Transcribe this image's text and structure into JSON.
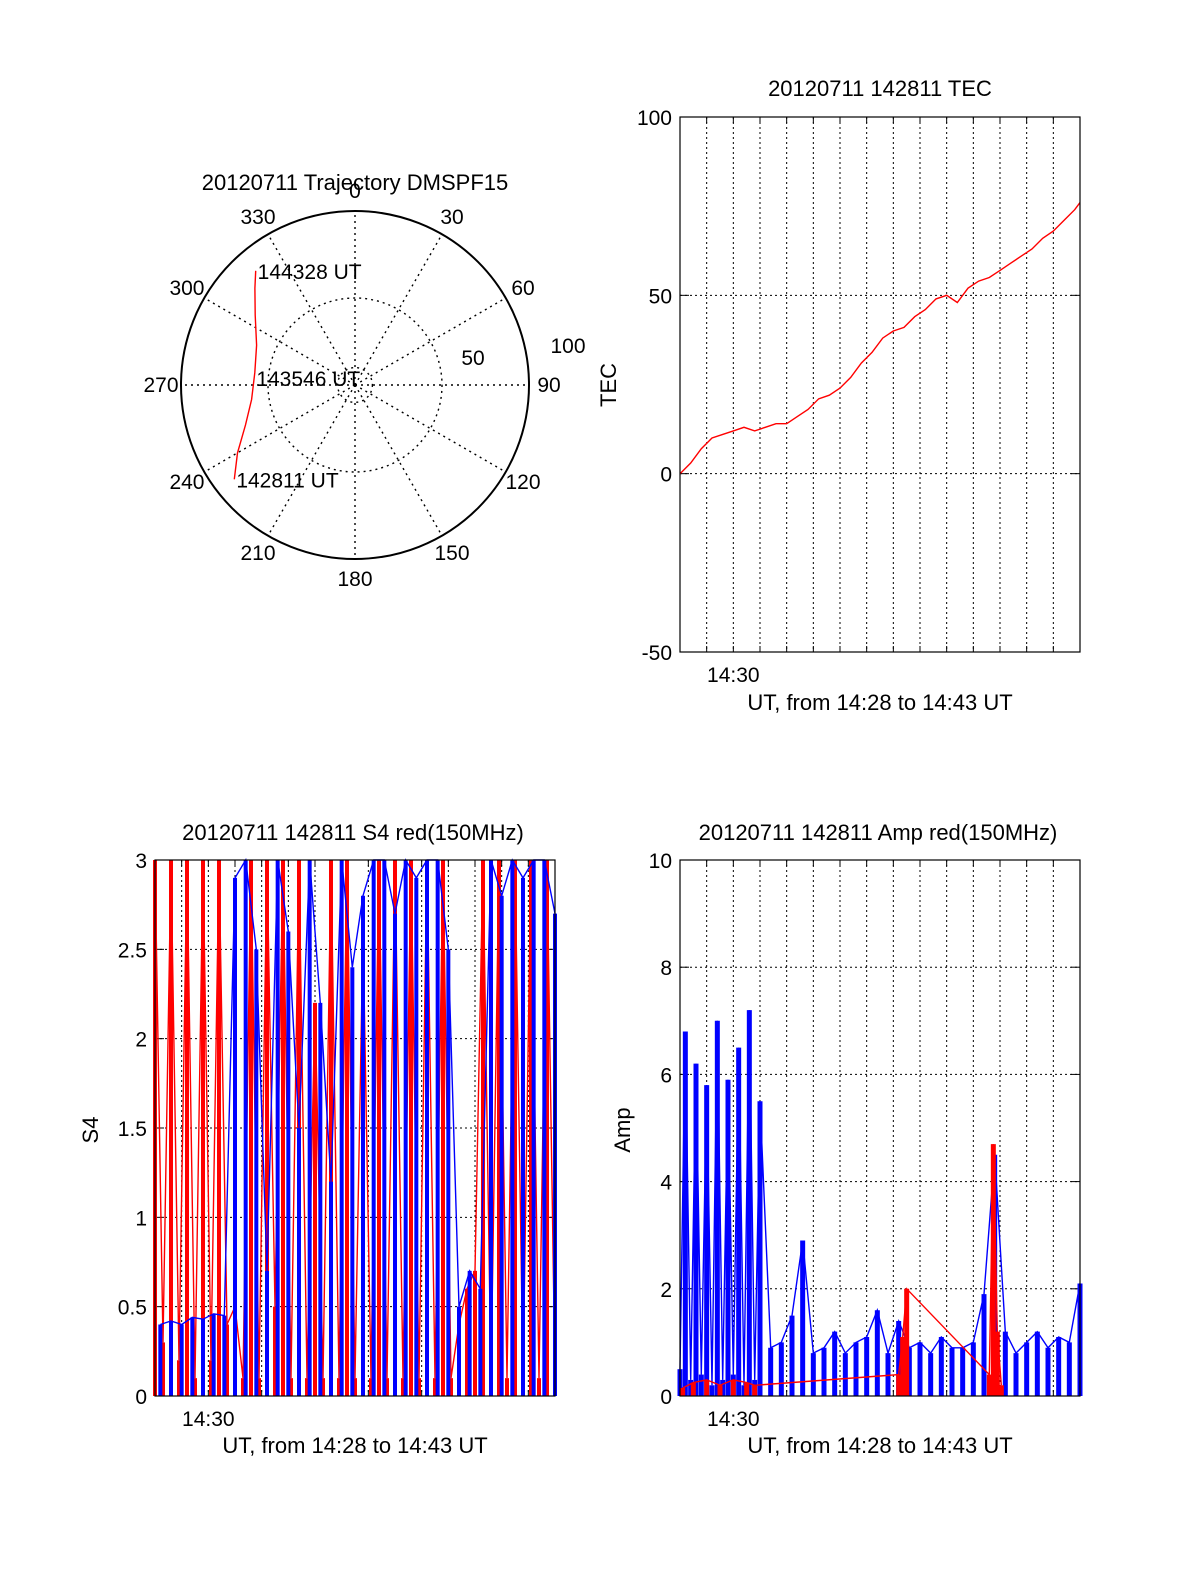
{
  "colors": {
    "red": "#ff0000",
    "blue": "#0000ff",
    "axis": "#000000",
    "background": "#ffffff"
  },
  "chart_data": [
    {
      "id": "trajectory",
      "type": "scatter",
      "projection": "polar",
      "title": "20120711 Trajectory DMSPF15",
      "azimuth_labels": [
        "0",
        "30",
        "60",
        "90",
        "120",
        "150",
        "180",
        "210",
        "240",
        "270",
        "300",
        "330"
      ],
      "radial_labels": [
        "50",
        "100"
      ],
      "radial_range": [
        0,
        100
      ],
      "grid": true,
      "series": [
        {
          "color": "#ff0000",
          "points_az_r": [
            [
              232,
              88
            ],
            [
              240,
              78
            ],
            [
              250,
              67
            ],
            [
              262,
              60
            ],
            [
              277,
              58
            ],
            [
              292,
              61
            ],
            [
              305,
              70
            ],
            [
              314,
              80
            ],
            [
              319,
              87
            ]
          ]
        }
      ],
      "annotations": [
        {
          "text": "144328 UT",
          "point_az_r": [
            319,
            87
          ]
        },
        {
          "text": "143546 UT",
          "point_az_r": [
            274,
            58
          ]
        },
        {
          "text": "142811 UT",
          "point_az_r": [
            232,
            88
          ]
        }
      ]
    },
    {
      "id": "tec",
      "type": "line",
      "title": "20120711 142811 TEC",
      "xlabel": "UT, from 14:28 to 14:43 UT",
      "ylabel": "TEC",
      "xlim": [
        0,
        15
      ],
      "ylim": [
        -50,
        100
      ],
      "yticks": [
        "100",
        "50",
        "0",
        "-50"
      ],
      "xtick_labels": [
        {
          "x": 2,
          "label": "14:30"
        }
      ],
      "grid": true,
      "series": [
        {
          "color": "#ff0000",
          "x": [
            0,
            0.4,
            0.8,
            1.2,
            1.6,
            2.0,
            2.4,
            2.8,
            3.2,
            3.6,
            4.0,
            4.4,
            4.8,
            5.2,
            5.6,
            6.0,
            6.4,
            6.8,
            7.2,
            7.6,
            8.0,
            8.4,
            8.8,
            9.2,
            9.6,
            10.0,
            10.4,
            10.8,
            11.2,
            11.6,
            12.0,
            12.4,
            12.8,
            13.2,
            13.6,
            14.0,
            14.4,
            14.8,
            15.0
          ],
          "values": [
            0,
            3,
            7,
            10,
            11,
            12,
            13,
            12,
            13,
            14,
            14,
            16,
            18,
            21,
            22,
            24,
            27,
            31,
            34,
            38,
            40,
            41,
            44,
            46,
            49,
            50,
            48,
            52,
            54,
            55,
            57,
            59,
            61,
            63,
            66,
            68,
            71,
            74,
            76
          ]
        }
      ]
    },
    {
      "id": "s4",
      "type": "line",
      "title": "20120711 142811 S4 red(150MHz)",
      "xlabel": "UT, from 14:28 to 14:43 UT",
      "ylabel": "S4",
      "xlim": [
        0,
        15
      ],
      "ylim": [
        0,
        3
      ],
      "yticks": [
        "3",
        "2.5",
        "2",
        "1.5",
        "1",
        "0.5",
        "0"
      ],
      "xtick_labels": [
        {
          "x": 2,
          "label": "14:30"
        }
      ],
      "grid": true,
      "series": [
        {
          "color": "#ff0000",
          "x": [
            0,
            0.3,
            0.6,
            0.9,
            1.2,
            1.5,
            1.8,
            2.1,
            2.4,
            2.7,
            3.0,
            3.3,
            3.6,
            3.9,
            4.2,
            4.5,
            4.8,
            5.1,
            5.4,
            5.7,
            6.0,
            6.3,
            6.6,
            6.9,
            7.2,
            7.5,
            7.8,
            8.1,
            8.4,
            8.7,
            9.0,
            9.3,
            9.6,
            9.9,
            10.2,
            10.5,
            10.8,
            11.1,
            11.4,
            11.7,
            12.0,
            12.3,
            12.6,
            12.9,
            13.2,
            13.5,
            13.8,
            14.1,
            14.4,
            14.7,
            15.0
          ],
          "values": [
            3,
            0.3,
            3,
            0.2,
            3,
            0.1,
            3,
            0.2,
            3,
            0.4,
            0.5,
            0.1,
            3,
            0.1,
            3,
            0.5,
            3,
            0.1,
            3,
            0.1,
            2.2,
            0.1,
            3,
            0.1,
            3,
            0.1,
            2.6,
            0.1,
            3,
            0.1,
            3,
            0.1,
            3,
            0.1,
            3,
            0.1,
            3,
            0.1,
            0.4,
            0.6,
            0.7,
            3,
            0.1,
            3,
            0.1,
            3,
            0.1,
            3,
            0.1,
            3,
            0.1
          ]
        },
        {
          "color": "#0000ff",
          "x": [
            0.2,
            0.6,
            1.0,
            1.4,
            1.8,
            2.2,
            2.6,
            3.0,
            3.4,
            3.8,
            4.2,
            4.6,
            5.0,
            5.4,
            5.8,
            6.2,
            6.6,
            7.0,
            7.4,
            7.8,
            8.2,
            8.6,
            9.0,
            9.4,
            9.8,
            10.2,
            10.6,
            11.0,
            11.4,
            11.8,
            12.2,
            12.6,
            13.0,
            13.4,
            13.8,
            14.2,
            14.6,
            15.0
          ],
          "values": [
            0.4,
            0.42,
            0.4,
            0.44,
            0.43,
            0.46,
            0.45,
            2.9,
            3,
            2.5,
            0.7,
            3,
            2.6,
            1.5,
            3,
            2.2,
            1.2,
            3,
            2.4,
            2.8,
            3,
            3,
            2.7,
            3,
            2.9,
            3,
            3,
            2.5,
            0.5,
            0.7,
            0.6,
            3,
            2.8,
            3,
            2.9,
            3,
            3,
            2.7
          ]
        }
      ]
    },
    {
      "id": "amp",
      "type": "line",
      "title": "20120711 142811 Amp red(150MHz)",
      "xlabel": "UT, from 14:28 to 14:43 UT",
      "ylabel": "Amp",
      "xlim": [
        0,
        15
      ],
      "ylim": [
        0,
        10
      ],
      "yticks": [
        "10",
        "8",
        "6",
        "4",
        "2",
        "0"
      ],
      "xtick_labels": [
        {
          "x": 2,
          "label": "14:30"
        }
      ],
      "grid": true,
      "series": [
        {
          "color": "#0000ff",
          "x": [
            0,
            0.2,
            0.4,
            0.6,
            0.8,
            1.0,
            1.2,
            1.4,
            1.6,
            1.8,
            2.0,
            2.2,
            2.4,
            2.6,
            2.8,
            3.0,
            3.4,
            3.8,
            4.2,
            4.6,
            5.0,
            5.4,
            5.8,
            6.2,
            6.6,
            7.0,
            7.4,
            7.8,
            8.2,
            8.6,
            9.0,
            9.4,
            9.8,
            10.2,
            10.6,
            11.0,
            11.4,
            11.8,
            12.2,
            12.6,
            13.0,
            13.4,
            13.8,
            14.2,
            14.6,
            15.0
          ],
          "values": [
            0.5,
            6.8,
            0.3,
            6.2,
            0.4,
            5.8,
            0.2,
            7.0,
            0.3,
            5.9,
            0.4,
            6.5,
            0.2,
            7.2,
            0.3,
            5.5,
            0.9,
            1.0,
            1.5,
            2.9,
            0.8,
            0.9,
            1.2,
            0.8,
            1.0,
            1.1,
            1.6,
            0.8,
            1.4,
            0.9,
            1.0,
            0.8,
            1.1,
            0.9,
            0.9,
            1.0,
            1.9,
            4.5,
            1.2,
            0.8,
            1.0,
            1.2,
            0.9,
            1.1,
            1.0,
            2.1
          ]
        },
        {
          "color": "#ff0000",
          "x": [
            0.1,
            0.5,
            1.0,
            1.5,
            2.0,
            2.5,
            2.8,
            8.2,
            8.35,
            8.5,
            11.6,
            11.75,
            11.9,
            12.05
          ],
          "values": [
            0.15,
            0.25,
            0.3,
            0.2,
            0.3,
            0.25,
            0.2,
            0.4,
            1.1,
            2.0,
            0.4,
            4.7,
            1.2,
            0.2
          ]
        }
      ]
    }
  ]
}
